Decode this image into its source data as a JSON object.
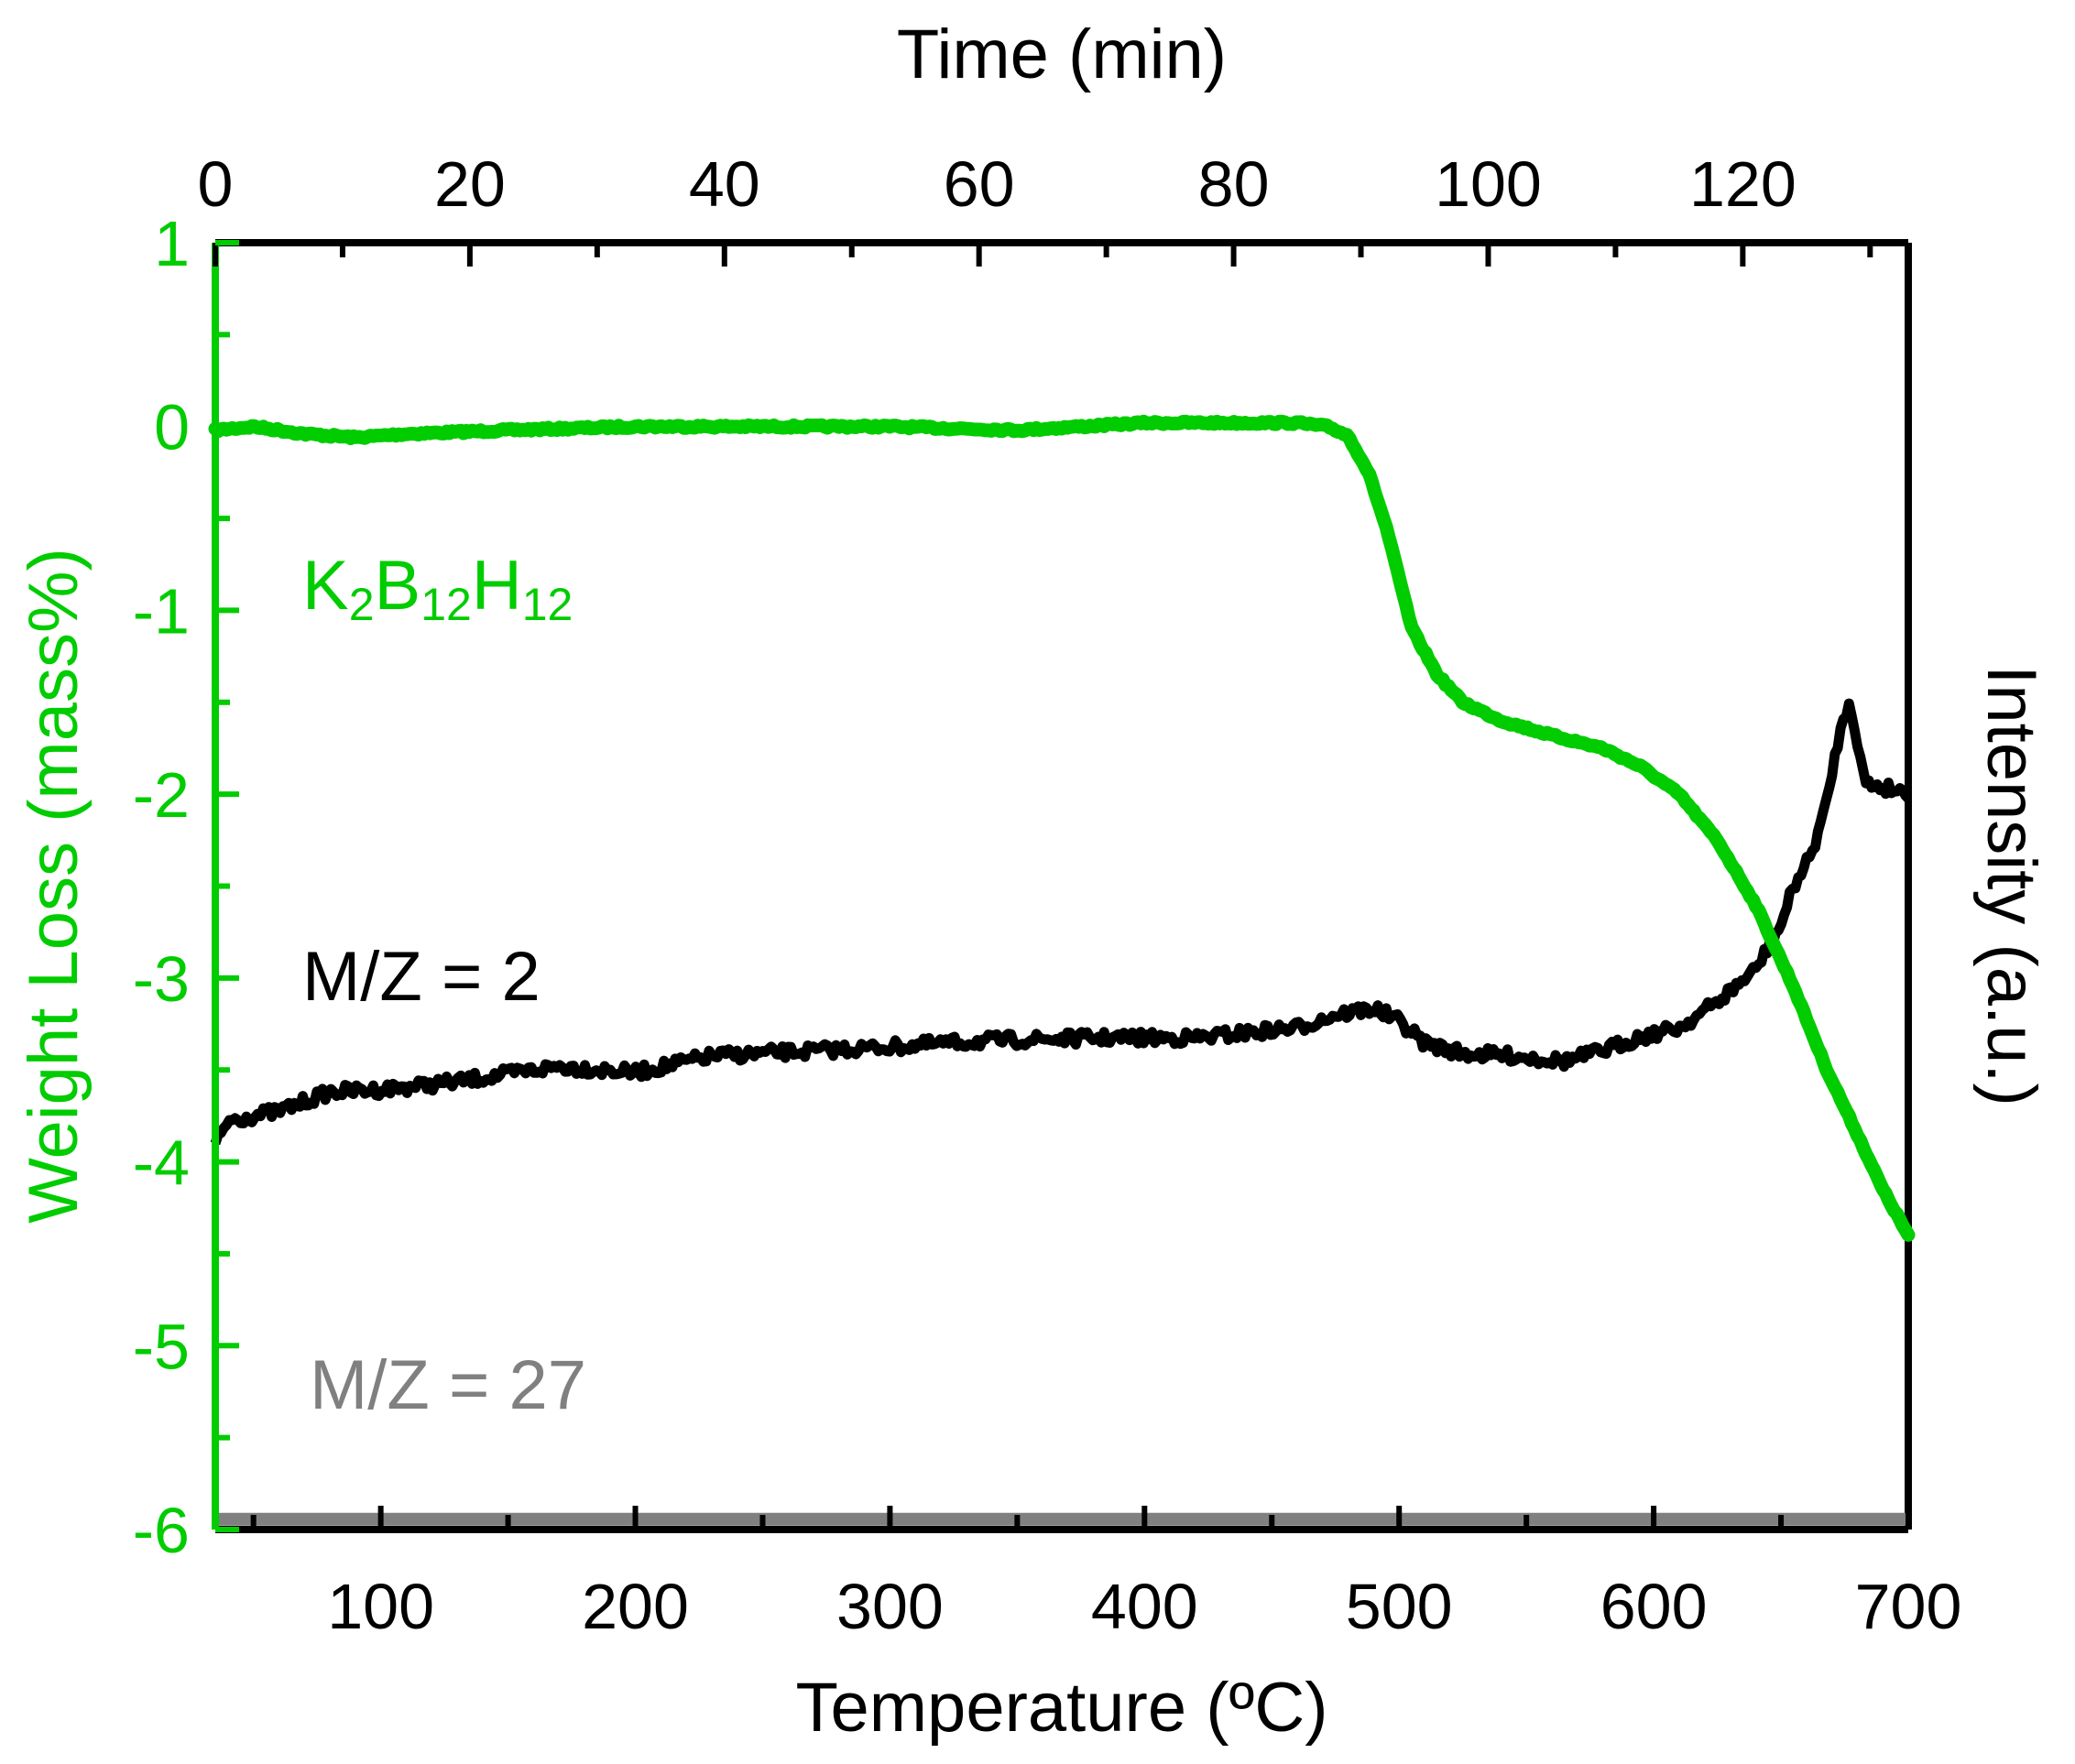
{
  "chart_data": {
    "type": "line",
    "title": "",
    "xlabel": "Temperature (ºC)",
    "x2label": "Time (min)",
    "ylabel": "Weight Loss (mass%)",
    "y2label": "Intensity (a.u.)",
    "xlim": [
      35,
      700
    ],
    "ylim": [
      -6,
      1
    ],
    "x2lim": [
      0,
      133
    ],
    "y2lim": [
      0,
      1
    ],
    "xticks": [
      100,
      200,
      300,
      400,
      500,
      600,
      700
    ],
    "x2ticks": [
      0,
      20,
      40,
      60,
      80,
      100,
      120
    ],
    "yticks": [
      1,
      0,
      -1,
      -2,
      -3,
      -4,
      -5,
      -6
    ],
    "grid": false,
    "colors": {
      "tga": "#00cc00",
      "mz2": "#000000",
      "mz27": "#808080",
      "axis": "#000000",
      "left_axis": "#00cc00"
    },
    "annotations": {
      "tga_label": {
        "K": "K",
        "sub1": "2",
        "B": "B",
        "sub2": "12",
        "H": "H",
        "sub3": "12"
      },
      "mz2_label": "M/Z = 2",
      "mz27_label": "M/Z = 27"
    },
    "series": [
      {
        "name": "K2B12H12 weight loss",
        "axis": "left",
        "x": [
          35,
          50,
          70,
          90,
          110,
          150,
          200,
          250,
          300,
          350,
          400,
          430,
          460,
          472,
          480,
          488,
          495,
          505,
          515,
          525,
          540,
          560,
          580,
          595,
          610,
          625,
          640,
          655,
          668,
          680,
          690,
          700
        ],
        "y": [
          -0.02,
          0.0,
          -0.04,
          -0.06,
          -0.04,
          -0.02,
          0.0,
          0.0,
          0.0,
          -0.02,
          0.02,
          0.02,
          0.02,
          0.0,
          -0.05,
          -0.25,
          -0.55,
          -1.1,
          -1.35,
          -1.5,
          -1.6,
          -1.68,
          -1.75,
          -1.85,
          -2.0,
          -2.25,
          -2.6,
          -3.05,
          -3.5,
          -3.85,
          -4.15,
          -4.4
        ]
      },
      {
        "name": "M/Z = 2",
        "axis": "right",
        "x": [
          35,
          40,
          60,
          80,
          100,
          130,
          170,
          200,
          230,
          270,
          300,
          340,
          380,
          420,
          460,
          475,
          490,
          500,
          510,
          525,
          545,
          565,
          580,
          595,
          610,
          625,
          640,
          650,
          655,
          662,
          668,
          672,
          677,
          683,
          690,
          700
        ],
        "y": [
          0.298,
          0.318,
          0.325,
          0.34,
          0.342,
          0.348,
          0.36,
          0.355,
          0.368,
          0.372,
          0.375,
          0.38,
          0.382,
          0.382,
          0.39,
          0.4,
          0.405,
          0.395,
          0.378,
          0.37,
          0.368,
          0.364,
          0.372,
          0.383,
          0.39,
          0.41,
          0.435,
          0.47,
          0.5,
          0.525,
          0.565,
          0.61,
          0.645,
          0.58,
          0.577,
          0.573
        ]
      },
      {
        "name": "M/Z = 27",
        "axis": "right",
        "x": [
          35,
          700
        ],
        "y": [
          0.008,
          0.008
        ]
      }
    ]
  }
}
